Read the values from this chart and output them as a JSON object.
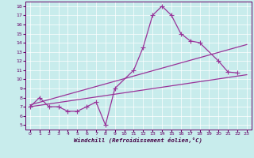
{
  "xlabel": "Windchill (Refroidissement éolien,°C)",
  "background_color": "#c8ecec",
  "line_color": "#993399",
  "xlim": [
    -0.5,
    23.5
  ],
  "ylim": [
    4.5,
    18.5
  ],
  "xticks": [
    0,
    1,
    2,
    3,
    4,
    5,
    6,
    7,
    8,
    9,
    10,
    11,
    12,
    13,
    14,
    15,
    16,
    17,
    18,
    19,
    20,
    21,
    22,
    23
  ],
  "yticks": [
    5,
    6,
    7,
    8,
    9,
    10,
    11,
    12,
    13,
    14,
    15,
    16,
    17,
    18
  ],
  "data_line": {
    "x": [
      0,
      1,
      2,
      3,
      4,
      5,
      6,
      7,
      8,
      9,
      11,
      12,
      13,
      14,
      15,
      16,
      17,
      18,
      20,
      21,
      22
    ],
    "y": [
      7.0,
      8.0,
      7.0,
      7.0,
      6.5,
      6.5,
      7.0,
      7.5,
      5.0,
      9.0,
      11.0,
      13.5,
      17.0,
      18.0,
      17.0,
      15.0,
      14.2,
      14.0,
      12.0,
      10.8,
      10.7
    ]
  },
  "trend_line1": {
    "x": [
      0,
      23
    ],
    "y": [
      7.2,
      13.8
    ]
  },
  "trend_line2": {
    "x": [
      0,
      23
    ],
    "y": [
      7.0,
      10.5
    ]
  }
}
